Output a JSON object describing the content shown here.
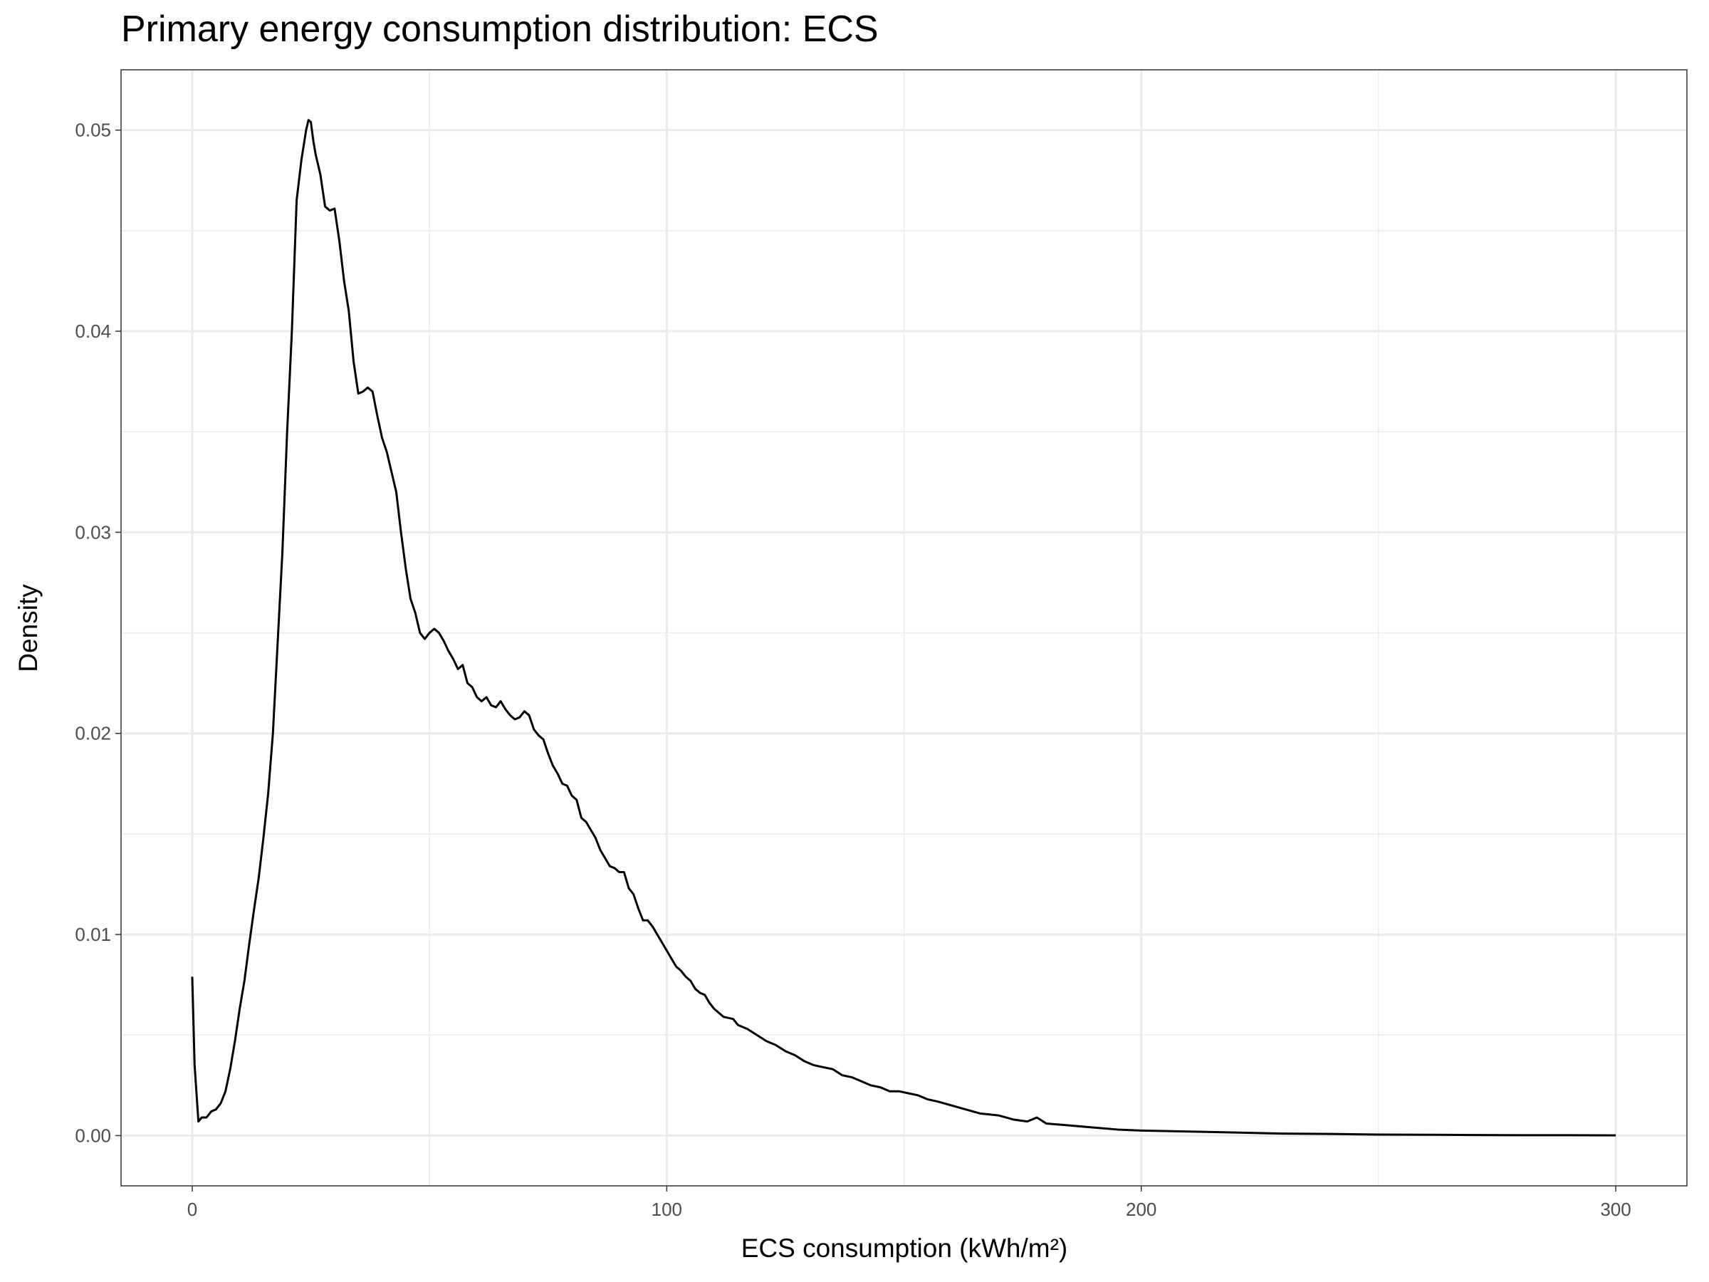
{
  "chart_data": {
    "type": "line",
    "title": "Primary energy consumption distribution: ECS",
    "x_label": "ECS consumption (kWh/m²)",
    "y_label": "Density",
    "x": [
      0,
      0.5,
      1.3,
      2,
      3,
      4,
      5,
      6,
      7,
      8,
      9,
      10,
      11,
      12,
      13,
      14,
      15,
      16,
      17,
      18,
      19,
      20,
      21,
      22,
      23,
      24,
      24.5,
      25,
      25.5,
      26,
      27,
      28,
      29,
      30,
      31,
      32,
      33,
      34,
      35,
      36,
      37,
      38,
      39,
      40,
      41,
      42,
      43,
      44,
      45,
      46,
      47,
      48,
      49,
      50,
      51,
      52,
      53,
      54,
      55,
      56,
      57,
      58,
      59,
      60,
      61,
      62,
      63,
      64,
      65,
      66,
      67,
      68,
      69,
      70,
      71,
      72,
      73,
      74,
      75,
      76,
      77,
      78,
      79,
      80,
      81,
      82,
      83,
      84,
      85,
      86,
      87,
      88,
      89,
      90,
      91,
      92,
      93,
      94,
      95,
      96,
      97,
      98,
      99,
      100,
      101,
      102,
      103,
      104,
      105,
      106,
      107,
      108,
      109,
      110,
      112,
      114,
      115,
      117,
      119,
      121,
      123,
      125,
      127,
      129,
      131,
      133,
      135,
      137,
      139,
      141,
      143,
      145,
      147,
      149,
      151,
      153,
      155,
      157,
      160,
      163,
      166,
      170,
      173,
      176,
      178,
      180,
      185,
      190,
      195,
      200,
      210,
      220,
      230,
      240,
      250,
      260,
      270,
      280,
      290,
      300
    ],
    "series": [
      {
        "name": "ECS",
        "color": "#000000",
        "values": [
          0.0079,
          0.0035,
          0.0007,
          0.0009,
          0.0009,
          0.0012,
          0.0013,
          0.0016,
          0.0022,
          0.0033,
          0.0047,
          0.0063,
          0.0077,
          0.0095,
          0.0112,
          0.0128,
          0.0148,
          0.017,
          0.02,
          0.0245,
          0.029,
          0.035,
          0.04,
          0.0465,
          0.0485,
          0.05,
          0.0505,
          0.0504,
          0.0495,
          0.0488,
          0.0478,
          0.0462,
          0.046,
          0.0461,
          0.0445,
          0.0425,
          0.041,
          0.0385,
          0.0369,
          0.037,
          0.0372,
          0.037,
          0.0358,
          0.0347,
          0.034,
          0.033,
          0.032,
          0.03,
          0.0282,
          0.0267,
          0.026,
          0.025,
          0.0247,
          0.025,
          0.0252,
          0.025,
          0.0246,
          0.0241,
          0.0237,
          0.0232,
          0.0234,
          0.0225,
          0.0223,
          0.0218,
          0.0216,
          0.0218,
          0.0214,
          0.0213,
          0.0216,
          0.0212,
          0.0209,
          0.0207,
          0.0208,
          0.0211,
          0.0209,
          0.0202,
          0.0199,
          0.0197,
          0.019,
          0.0184,
          0.018,
          0.0175,
          0.0174,
          0.0169,
          0.0167,
          0.0158,
          0.0156,
          0.0152,
          0.0148,
          0.0142,
          0.0138,
          0.0134,
          0.0133,
          0.0131,
          0.0131,
          0.0123,
          0.012,
          0.0113,
          0.0107,
          0.0107,
          0.0104,
          0.01,
          0.0096,
          0.0092,
          0.0088,
          0.0084,
          0.0082,
          0.0079,
          0.0077,
          0.0073,
          0.0071,
          0.007,
          0.0066,
          0.0063,
          0.0059,
          0.0058,
          0.0055,
          0.0053,
          0.005,
          0.0047,
          0.0045,
          0.0042,
          0.004,
          0.0037,
          0.0035,
          0.0034,
          0.0033,
          0.003,
          0.0029,
          0.0027,
          0.0025,
          0.0024,
          0.0022,
          0.0022,
          0.0021,
          0.002,
          0.0018,
          0.0017,
          0.0015,
          0.0013,
          0.0011,
          0.001,
          0.0008,
          0.0007,
          0.0009,
          0.0006,
          0.0005,
          0.0004,
          0.0003,
          0.00025,
          0.0002,
          0.00015,
          0.0001,
          8e-05,
          5e-05,
          4e-05,
          3e-05,
          2e-05,
          2e-05,
          1e-05
        ]
      }
    ],
    "xlim": [
      -15,
      315
    ],
    "ylim": [
      -0.0025,
      0.053
    ],
    "xticks": [
      0,
      100,
      200,
      300
    ],
    "yticks": [
      {
        "value": 0,
        "label": "0.00"
      },
      0.01,
      0.02,
      0.03,
      0.04,
      0.05
    ],
    "x_minor_ticks": [
      50,
      150,
      250
    ],
    "y_minor_ticks": [
      0.005,
      0.015,
      0.025,
      0.035,
      0.045
    ],
    "grid": true
  }
}
